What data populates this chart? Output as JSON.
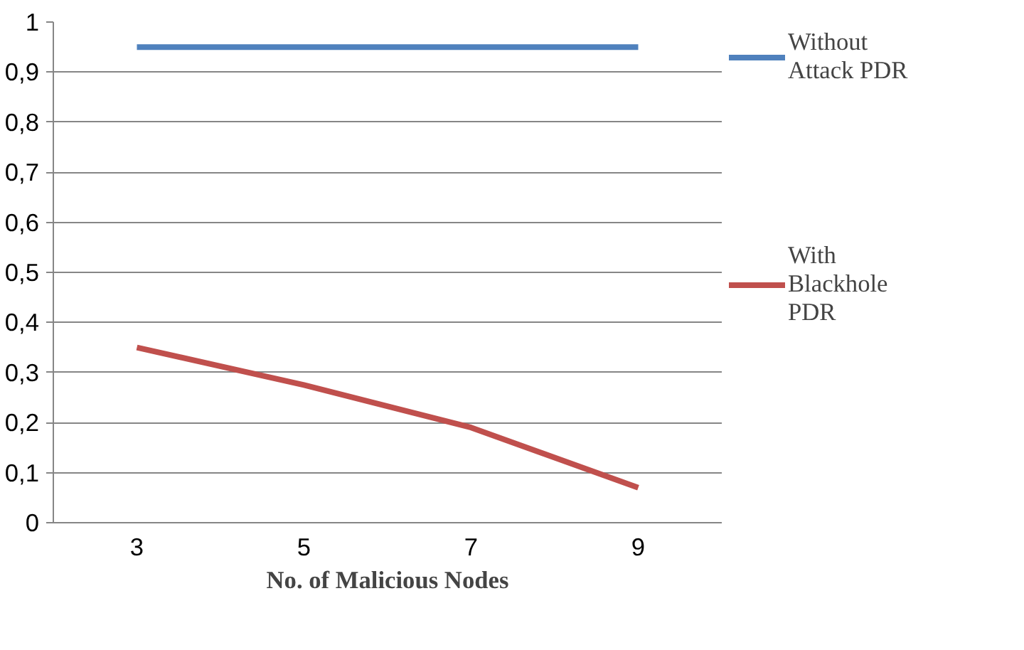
{
  "chart_data": {
    "type": "line",
    "xlabel": "No. of Malicious Nodes",
    "categories": [
      "3",
      "5",
      "7",
      "9"
    ],
    "series": [
      {
        "name": "Without Attack PDR",
        "color": "#4f81bd",
        "values": [
          0.95,
          0.95,
          0.95,
          0.95
        ]
      },
      {
        "name": "With Blackhole PDR",
        "color": "#c0504d",
        "values": [
          0.35,
          0.275,
          0.19,
          0.07
        ]
      }
    ],
    "ylim": [
      0,
      1
    ],
    "yticks": [
      0,
      {
        "value": 0.1,
        "label": "0,1"
      },
      {
        "value": 0.2,
        "label": "0,2"
      },
      {
        "value": 0.3,
        "label": "0,3"
      },
      {
        "value": 0.4,
        "label": "0,4"
      },
      {
        "value": 0.5,
        "label": "0,5"
      },
      {
        "value": 0.6,
        "label": "0,6"
      },
      {
        "value": 0.7,
        "label": "0,7"
      },
      {
        "value": 0.8,
        "label": "0,8"
      },
      {
        "value": 0.9,
        "label": "0,9"
      },
      1
    ],
    "grid": "y",
    "legend": "right",
    "marker": "none",
    "line_style": "solid"
  }
}
